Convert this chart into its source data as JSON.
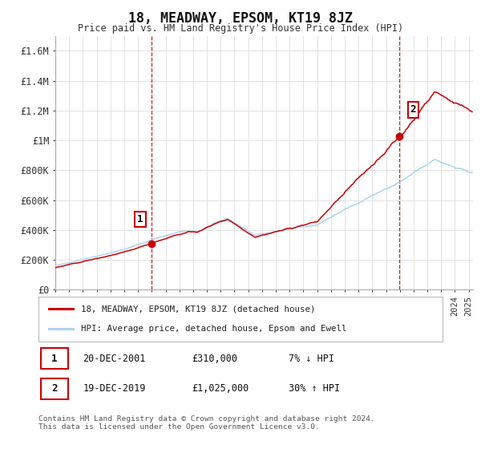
{
  "title": "18, MEADWAY, EPSOM, KT19 8JZ",
  "subtitle": "Price paid vs. HM Land Registry's House Price Index (HPI)",
  "ylim": [
    0,
    1700000
  ],
  "yticks": [
    0,
    200000,
    400000,
    600000,
    800000,
    1000000,
    1200000,
    1400000,
    1600000
  ],
  "ytick_labels": [
    "£0",
    "£200K",
    "£400K",
    "£600K",
    "£800K",
    "£1M",
    "£1.2M",
    "£1.4M",
    "£1.6M"
  ],
  "hpi_color": "#aad4f0",
  "price_color": "#cc0000",
  "vline_color": "#cc0000",
  "marker1_year": 2001.97,
  "marker1_price": 310000,
  "marker1_label": "1",
  "marker2_year": 2019.97,
  "marker2_price": 1025000,
  "marker2_label": "2",
  "legend_line1": "18, MEADWAY, EPSOM, KT19 8JZ (detached house)",
  "legend_line2": "HPI: Average price, detached house, Epsom and Ewell",
  "annotation1_date": "20-DEC-2001",
  "annotation1_price": "£310,000",
  "annotation1_hpi": "7% ↓ HPI",
  "annotation2_date": "19-DEC-2019",
  "annotation2_price": "£1,025,000",
  "annotation2_hpi": "30% ↑ HPI",
  "footer": "Contains HM Land Registry data © Crown copyright and database right 2024.\nThis data is licensed under the Open Government Licence v3.0.",
  "bg_color": "#ffffff",
  "grid_color": "#dddddd",
  "xlim_start": 1995,
  "xlim_end": 2025.3
}
